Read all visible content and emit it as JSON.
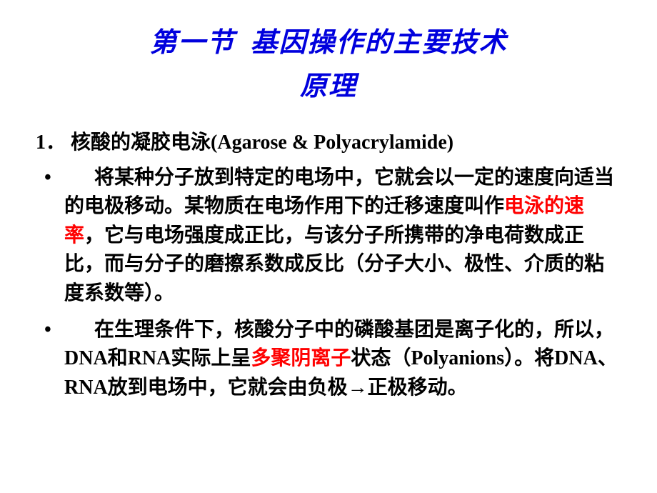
{
  "title_line1": "第一节 基因操作的主要技术",
  "title_line2": "原理",
  "heading_num": "1．",
  "heading_text_cn": "核酸的凝胶电泳",
  "heading_text_en": "(Agarose & Polyacrylamide)",
  "para1_a": "将某种分子放到特定的电场中，它就会以一定的速度向适当的电极移动。某物质在电场作用下的迁移速度叫作",
  "para1_hl1": "电泳的速率",
  "para1_b": "，它与电场强度成正比，与该分子所携带的净电荷数成正比，而与分子的磨擦系数成反比（分子大小、极性、介质的粘度系数等）。",
  "para2_a": "在生理条件下，核酸分子中的磷酸基团是离子化的，所以，",
  "para2_dna": "DNA",
  "para2_b": "和",
  "para2_rna": "RNA",
  "para2_c": "实际上呈",
  "para2_hl1": "多聚阴离子",
  "para2_d": "状态（",
  "para2_poly": "Polyanions",
  "para2_e": "）。将",
  "para2_dna2": "DNA",
  "para2_f": "、",
  "para2_rna2": "RNA",
  "para2_g": "放到电场中，它就会由负极→正极移动。",
  "colors": {
    "title": "#0000dd",
    "body": "#000000",
    "highlight": "#ff0000",
    "background": "#ffffff"
  },
  "fontsize": {
    "title": 38,
    "body": 28
  }
}
